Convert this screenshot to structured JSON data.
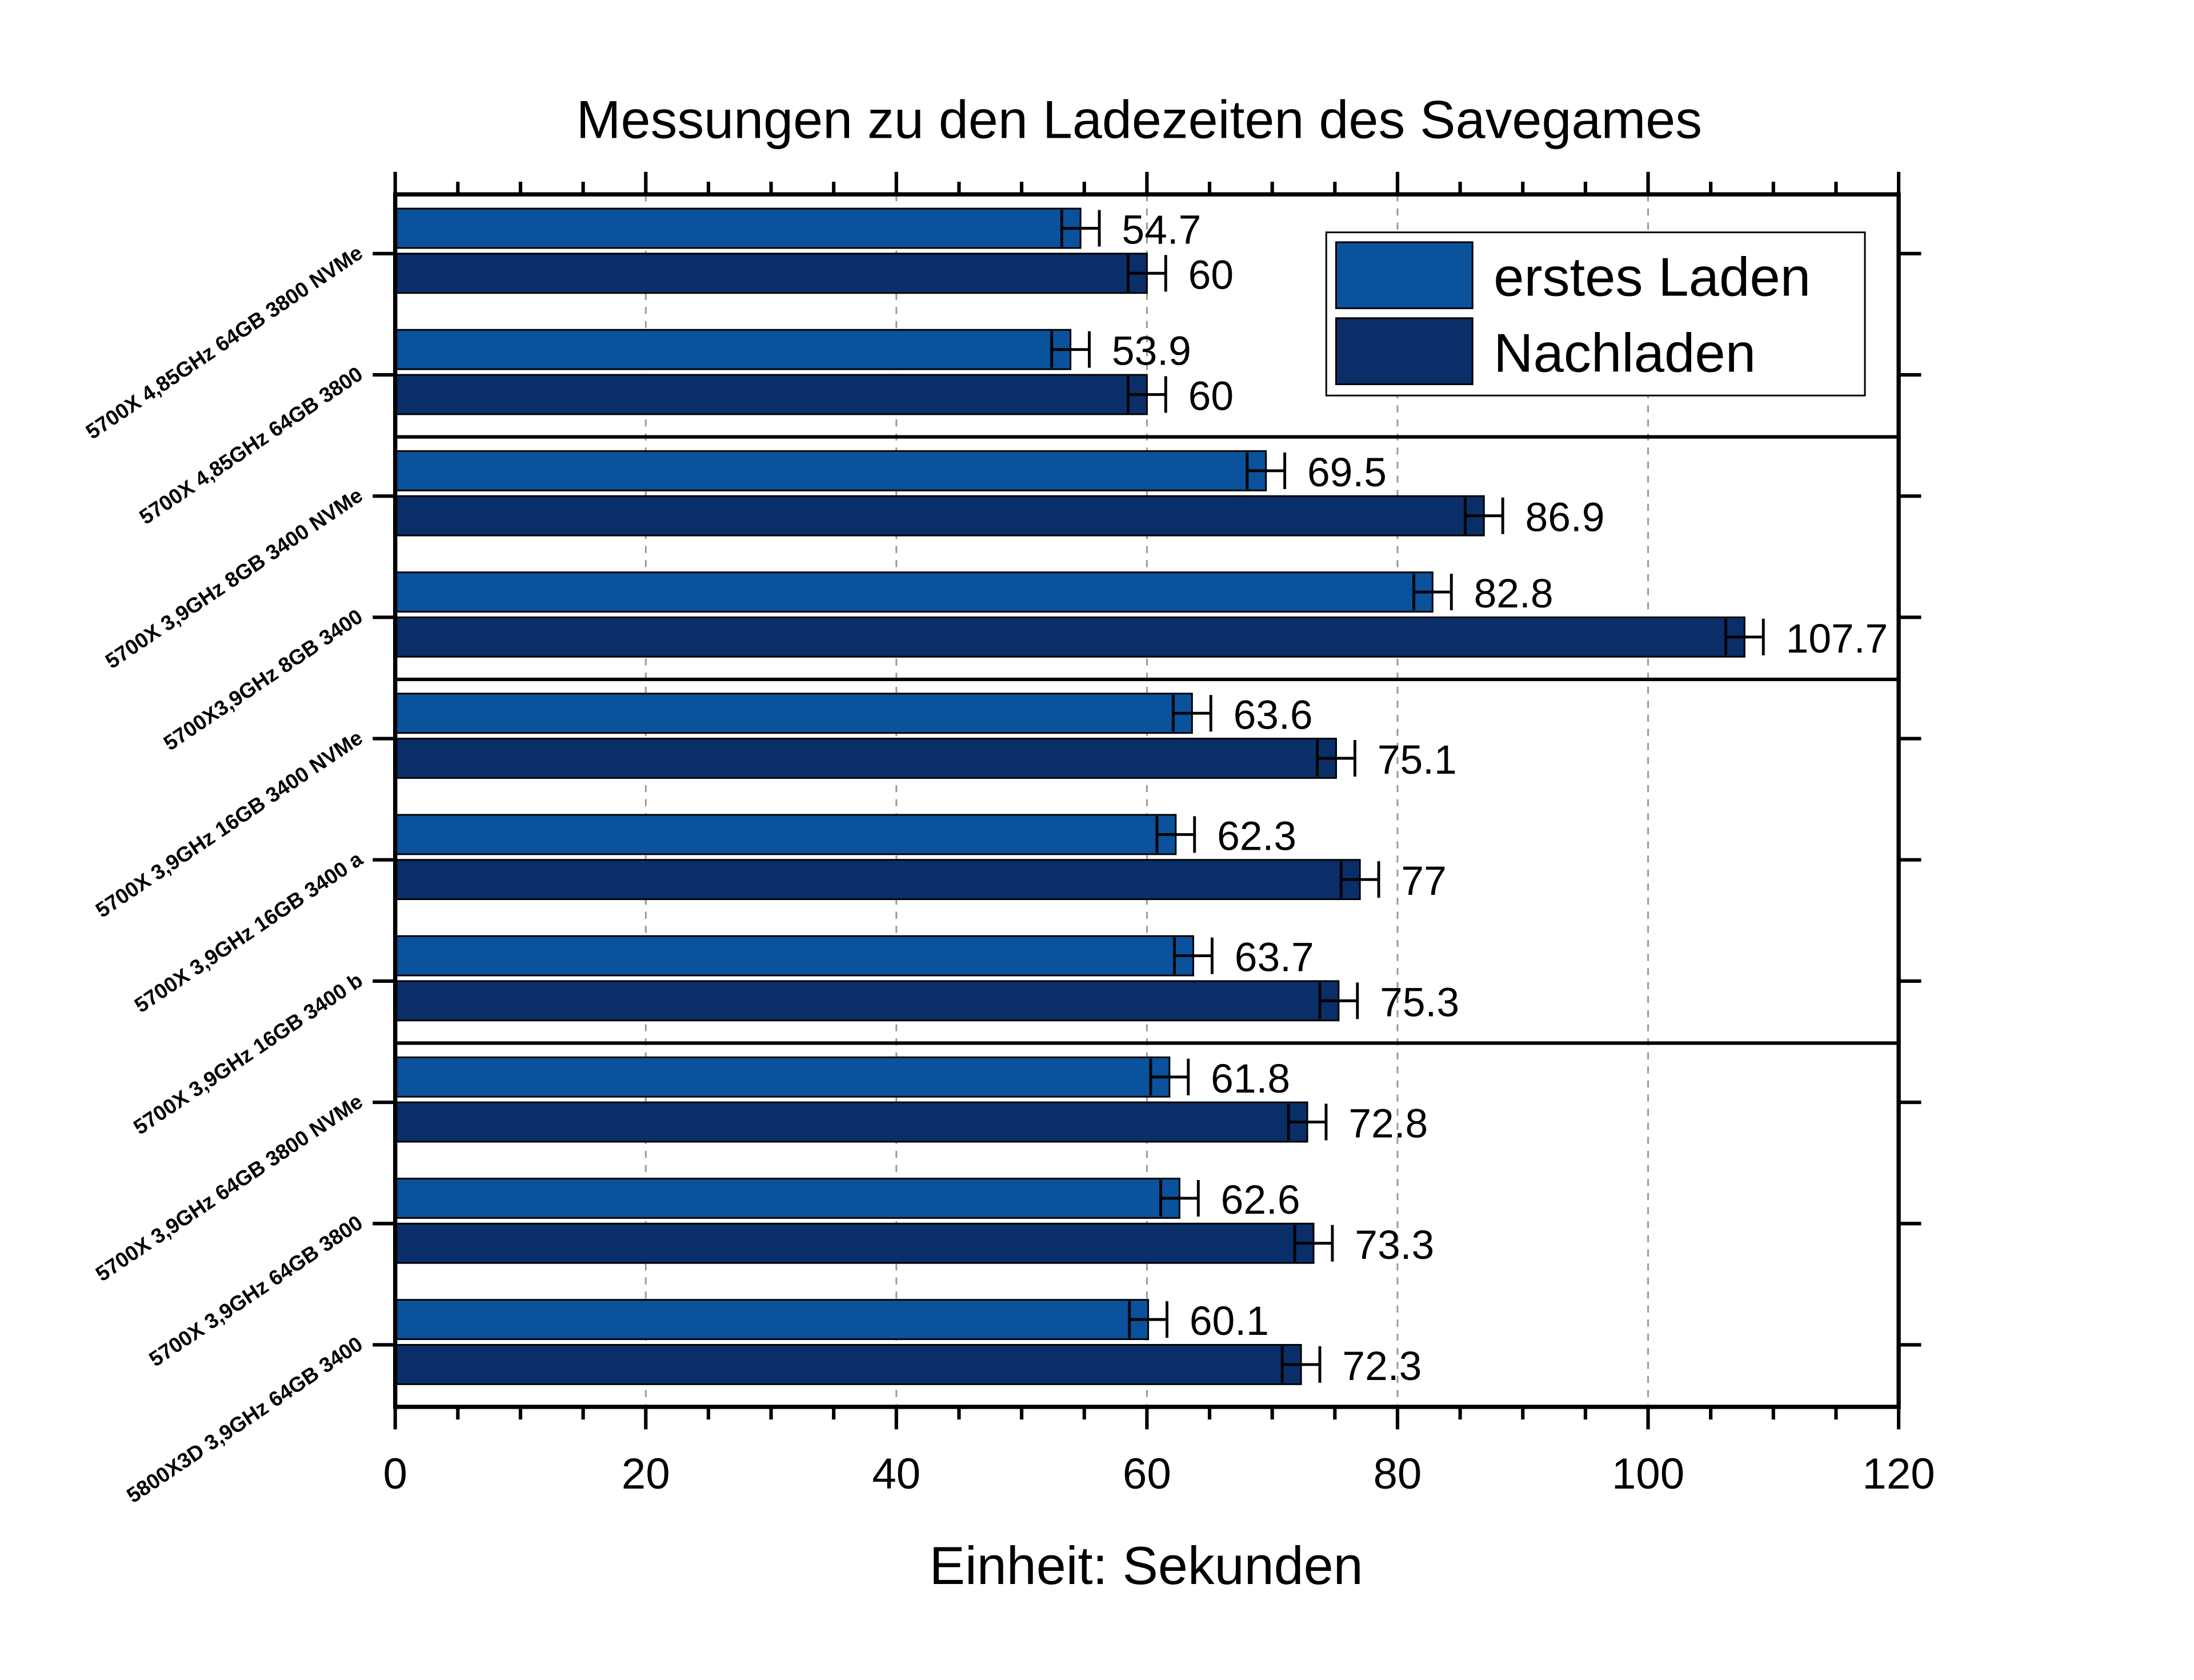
{
  "chart_data": {
    "type": "bar",
    "orientation": "horizontal",
    "title": "Messungen zu den Ladezeiten des Savegames",
    "xlabel": "Einheit: Sekunden",
    "ylabel": "",
    "xlim": [
      0,
      120
    ],
    "xticks": [
      0,
      20,
      40,
      60,
      80,
      100,
      120
    ],
    "grid": "vertical dashed",
    "legend_position": "top-right",
    "categories": [
      "5700X 4,85GHz 64GB 3800 NVMe",
      "5700X 4,85GHz 64GB 3800",
      "5700X 3,9GHz 8GB 3400 NVMe",
      "5700X3,9GHz 8GB 3400",
      "5700X 3,9GHz 16GB 3400 NVMe",
      "5700X 3,9GHz 16GB 3400 a",
      "5700X 3,9GHz 16GB 3400 b",
      "5700X 3,9GHz 64GB 3800 NVMe",
      "5700X 3,9GHz 64GB 3800",
      "5800X3D 3,9GHz 64GB 3400"
    ],
    "group_separators_after": [
      1,
      3,
      6
    ],
    "series": [
      {
        "name": "erstes Laden",
        "color": "#0a529c",
        "values": [
          54.7,
          53.9,
          69.5,
          82.8,
          63.6,
          62.3,
          63.7,
          61.8,
          62.6,
          60.1
        ],
        "labels": [
          "54.7",
          "53.9",
          "69.5",
          "82.8",
          "63.6",
          "62.3",
          "63.7",
          "61.8",
          "62.6",
          "60.1"
        ],
        "error": 1.5
      },
      {
        "name": "Nachladen",
        "color": "#0a2f68",
        "values": [
          60,
          60,
          86.9,
          107.7,
          75.1,
          77,
          75.3,
          72.8,
          73.3,
          72.3
        ],
        "labels": [
          "60",
          "60",
          "86.9",
          "107.7",
          "75.1",
          "77",
          "75.3",
          "72.8",
          "73.3",
          "72.3"
        ],
        "error": 1.5
      }
    ]
  }
}
